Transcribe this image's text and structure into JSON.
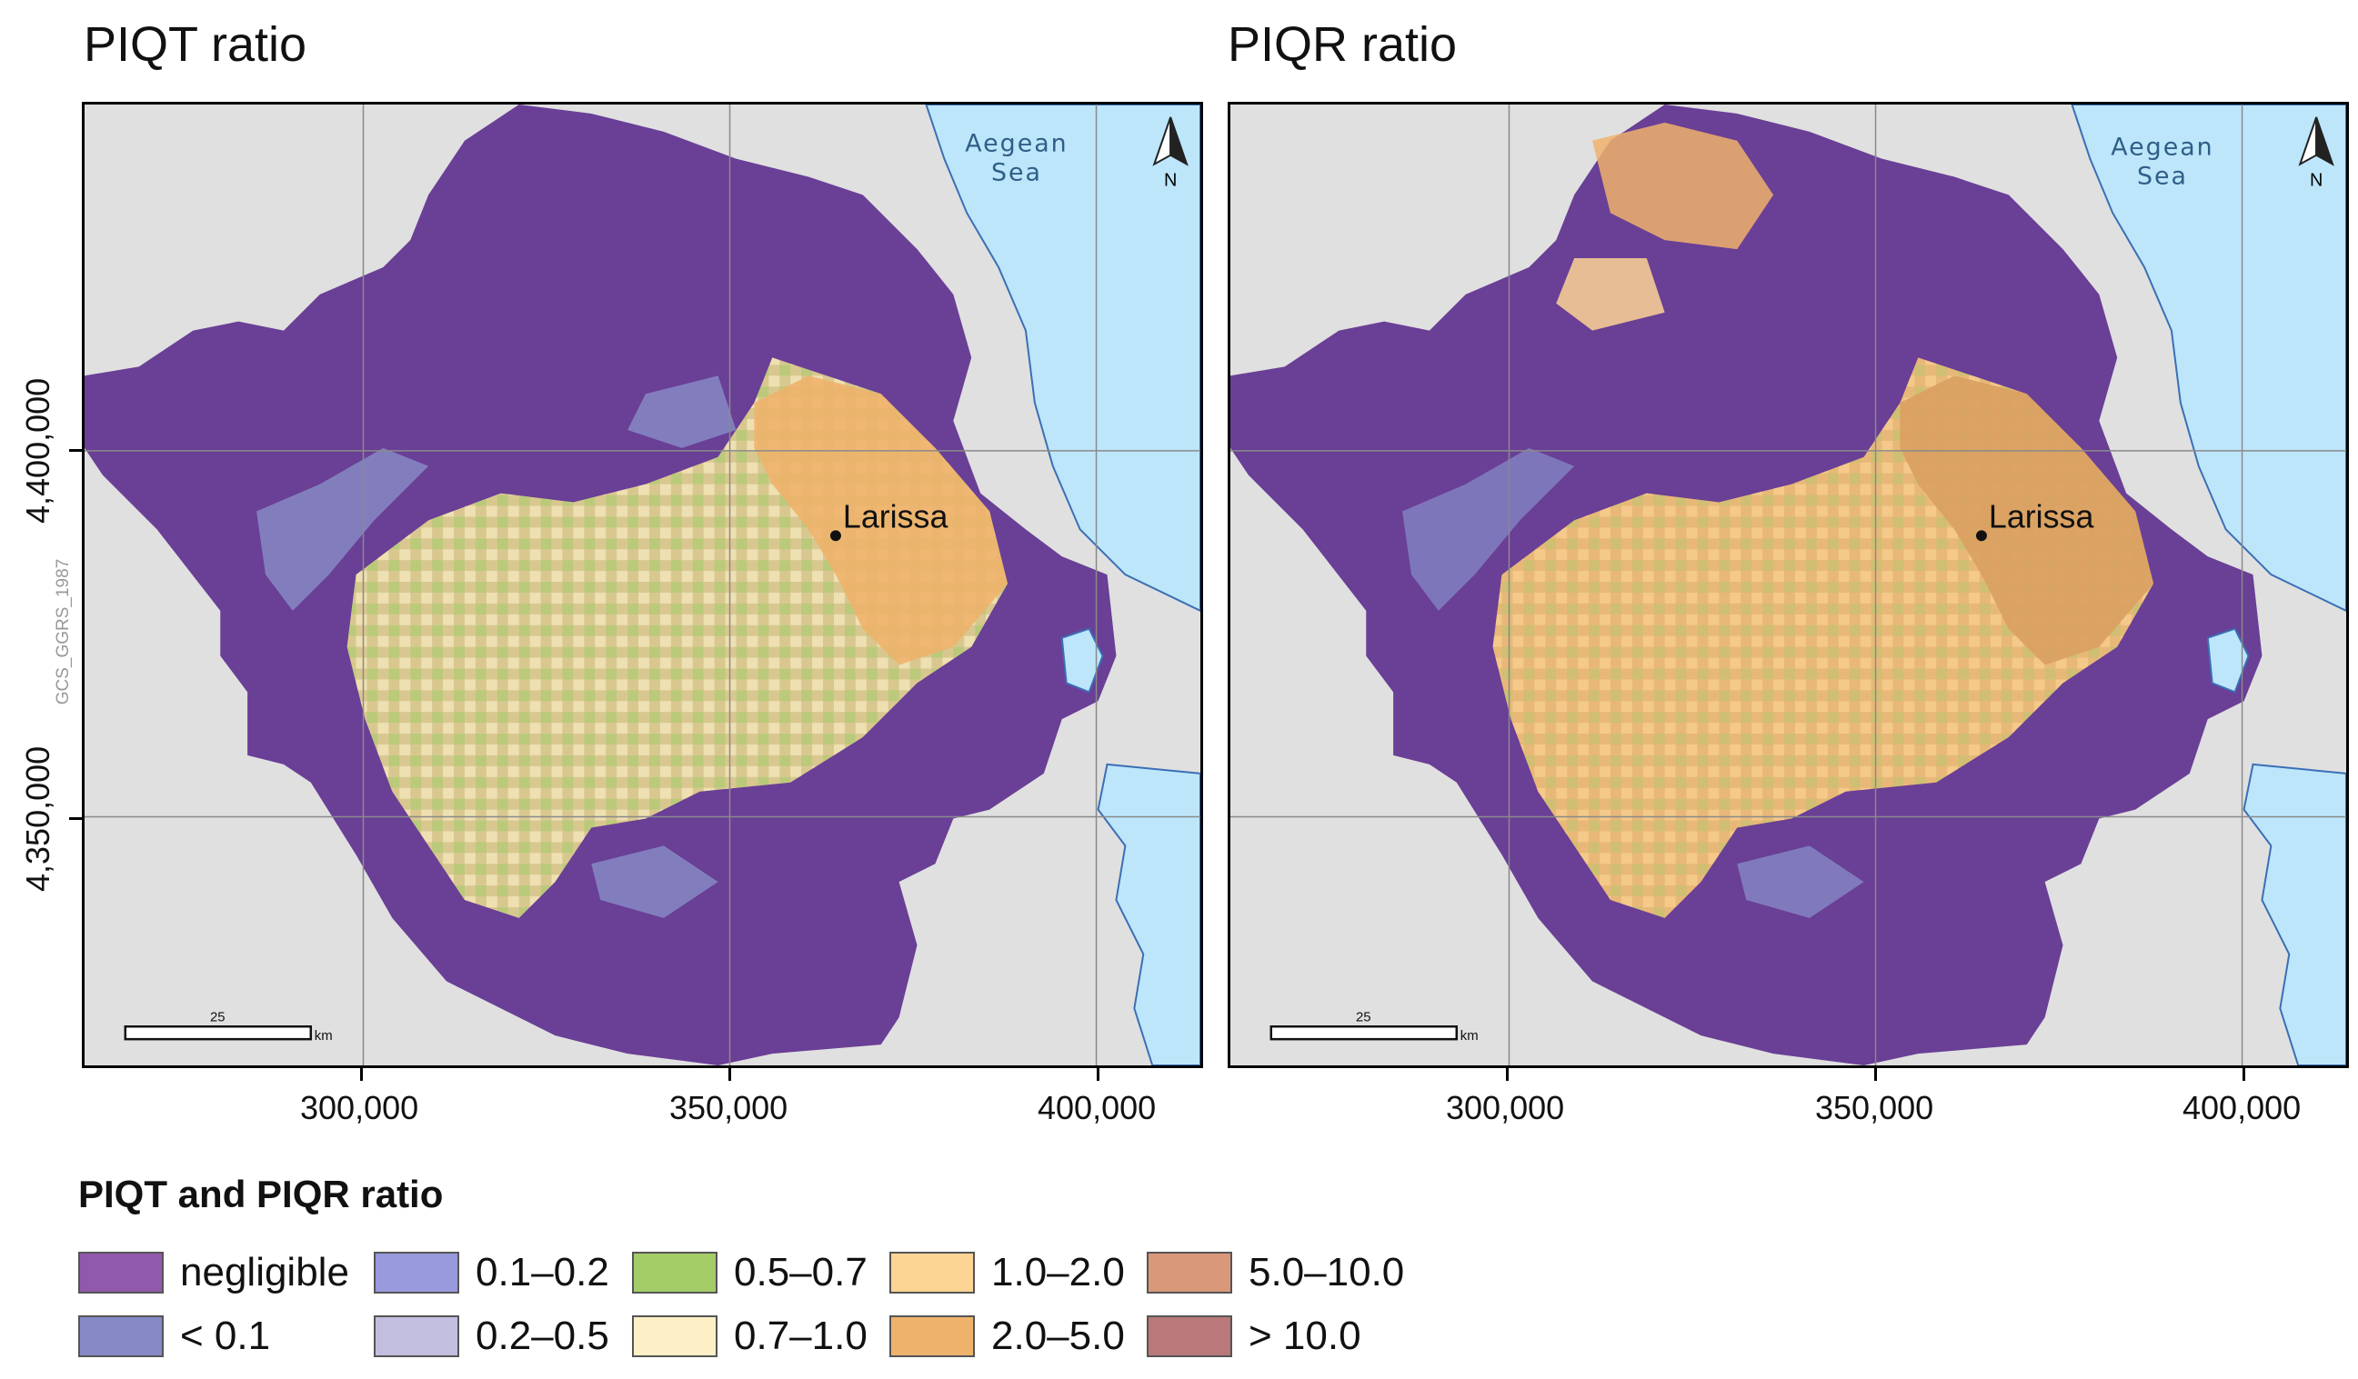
{
  "panels": [
    {
      "title": "PIQT ratio",
      "sea_line1": "Aegean",
      "sea_line2": "Sea",
      "city": "Larissa",
      "north": "N",
      "scale_value": "25",
      "scale_unit": "km"
    },
    {
      "title": "PIQR ratio",
      "sea_line1": "Aegean",
      "sea_line2": "Sea",
      "city": "Larissa",
      "north": "N",
      "scale_value": "25",
      "scale_unit": "km"
    }
  ],
  "axes": {
    "x_ticks": [
      "300,000",
      "350,000",
      "400,000"
    ],
    "y_ticks": [
      "4,400,000",
      "4,350,000"
    ],
    "crs": "GCS_GGRS_1987"
  },
  "legend": {
    "title": "PIQT and PIQR ratio",
    "items": [
      {
        "label": "negligible",
        "color": "#9159ac"
      },
      {
        "label": "< 0.1",
        "color": "#8689c6"
      },
      {
        "label": "0.1–0.2",
        "color": "#9999dd"
      },
      {
        "label": "0.2–0.5",
        "color": "#c2bedf"
      },
      {
        "label": "0.5–0.7",
        "color": "#a3cc67"
      },
      {
        "label": "0.7–1.0",
        "color": "#fdf0c6"
      },
      {
        "label": "1.0–2.0",
        "color": "#fcd494"
      },
      {
        "label": "2.0–5.0",
        "color": "#eeb26c"
      },
      {
        "label": "5.0–10.0",
        "color": "#d9987a"
      },
      {
        "label": "> 10.0",
        "color": "#b9787a"
      }
    ]
  },
  "colors": {
    "sea": "#bde6fb",
    "land_bg": "#e0e0e0",
    "mountain": "#6a3f96",
    "plain_piqt": "#d8c890",
    "plain_piqr": "#e8b878"
  }
}
